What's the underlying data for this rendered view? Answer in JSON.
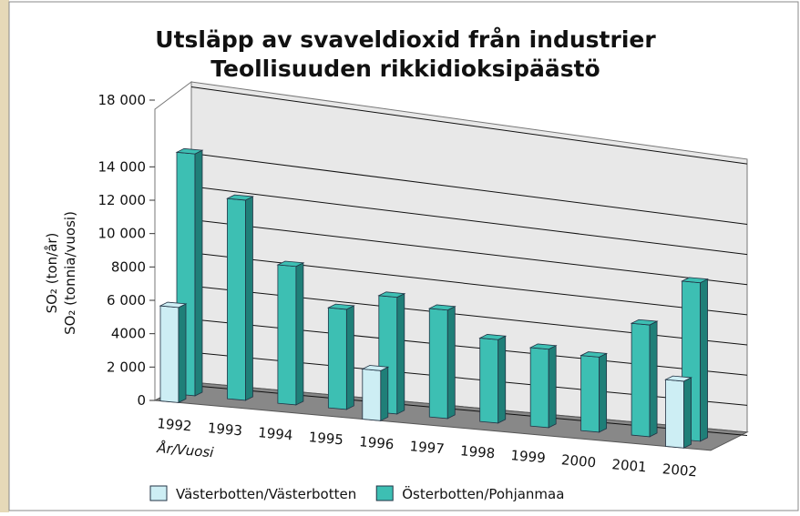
{
  "chart_data": {
    "type": "bar3d",
    "title": "Utsläpp av svaveldioxid från industrier",
    "subtitle": "Teollisuuden rikkidioksipäästö",
    "y_label": "SO₂ (ton/år)",
    "y_label_2": "SO₂ (tonnia/vuosi)",
    "x_label": "År/Vuosi",
    "categories": [
      "1992",
      "1993",
      "1994",
      "1995",
      "1996",
      "1997",
      "1998",
      "1999",
      "2000",
      "2001",
      "2002"
    ],
    "series": [
      {
        "name": "Västerbotten/Västerbotten",
        "color": "#cdeef4",
        "values": [
          5700,
          null,
          null,
          null,
          3000,
          null,
          null,
          null,
          null,
          null,
          4000
        ]
      },
      {
        "name": "Österbotten/Pohjanmaa",
        "color": "#3dbfb3",
        "values": [
          14500,
          12000,
          8300,
          6000,
          7000,
          6500,
          5000,
          4700,
          4500,
          6700,
          9500
        ]
      }
    ],
    "ylim": [
      0,
      18000
    ],
    "yticks": [
      0,
      {
        "value": 2000,
        "label": "2 000"
      },
      {
        "value": 4000,
        "label": "4000"
      },
      {
        "value": 6000,
        "label": "6 000"
      },
      {
        "value": 8000,
        "label": "8000"
      },
      {
        "value": 10000,
        "label": "10 000"
      },
      {
        "value": 12000,
        "label": "12 000"
      },
      {
        "value": 14000,
        "label": "14 000"
      },
      {
        "value": 18000,
        "label": "18 000"
      }
    ],
    "grid": true,
    "legend": "bottom"
  }
}
